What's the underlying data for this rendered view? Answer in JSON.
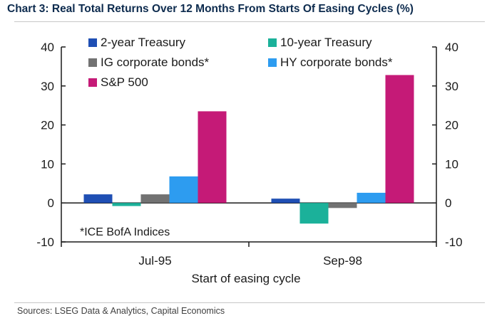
{
  "header": {
    "title": "Chart 3: Real Total Returns Over 12 Months From Starts Of Easing Cycles (%)"
  },
  "footer": {
    "sources": "Sources: LSEG Data & Analytics, Capital Economics"
  },
  "chart_data": {
    "type": "bar",
    "title": "Chart 3: Real Total Returns Over 12 Months From Starts Of Easing Cycles (%)",
    "xlabel": "Start of easing cycle",
    "ylabel": "",
    "ylim": [
      -10,
      40
    ],
    "yticks": [
      -10,
      0,
      10,
      20,
      30,
      40
    ],
    "ytick_labels": [
      "-10",
      "0",
      "10",
      "20",
      "30",
      "40"
    ],
    "categories": [
      "Jul-95",
      "Sep-98"
    ],
    "series": [
      {
        "name": "2-year Treasury",
        "color": "#1f4fb4",
        "values": [
          2.2,
          1.1
        ]
      },
      {
        "name": "10-year Treasury",
        "color": "#1bb19a",
        "values": [
          -0.8,
          -5.3
        ]
      },
      {
        "name": "IG corporate bonds*",
        "color": "#727272",
        "values": [
          2.2,
          -1.3
        ]
      },
      {
        "name": "HY corporate bonds*",
        "color": "#2d9cf0",
        "values": [
          6.8,
          2.6
        ]
      },
      {
        "name": "S&P 500",
        "color": "#c51a77",
        "values": [
          23.5,
          32.8
        ]
      }
    ],
    "annotation": "*ICE BofA Indices",
    "grid": false,
    "legend_position": "top"
  }
}
